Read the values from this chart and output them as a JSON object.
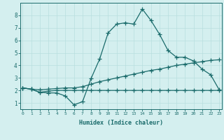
{
  "line1_x": [
    0,
    1,
    2,
    3,
    4,
    5,
    6,
    7,
    8,
    9,
    10,
    11,
    12,
    13,
    14,
    15,
    16,
    17,
    18,
    19,
    20,
    21,
    22,
    23
  ],
  "line1_y": [
    2.2,
    2.1,
    1.85,
    1.8,
    1.8,
    1.55,
    0.85,
    1.1,
    2.95,
    4.5,
    6.6,
    7.3,
    7.4,
    7.3,
    8.5,
    7.6,
    6.5,
    5.2,
    4.65,
    4.65,
    4.35,
    3.7,
    3.25,
    2.05
  ],
  "line2_x": [
    0,
    1,
    2,
    3,
    4,
    5,
    6,
    7,
    8,
    9,
    10,
    11,
    12,
    13,
    14,
    15,
    16,
    17,
    18,
    19,
    20,
    21,
    22,
    23
  ],
  "line2_y": [
    2.2,
    2.1,
    2.05,
    2.1,
    2.15,
    2.2,
    2.2,
    2.3,
    2.5,
    2.7,
    2.85,
    3.0,
    3.15,
    3.3,
    3.45,
    3.6,
    3.7,
    3.85,
    4.0,
    4.1,
    4.2,
    4.3,
    4.4,
    4.45
  ],
  "line3_x": [
    0,
    1,
    2,
    3,
    4,
    5,
    6,
    7,
    8,
    9,
    10,
    11,
    12,
    13,
    14,
    15,
    16,
    17,
    18,
    19,
    20,
    21,
    22,
    23
  ],
  "line3_y": [
    2.2,
    2.1,
    1.85,
    1.95,
    2.0,
    2.0,
    2.0,
    2.0,
    2.0,
    2.0,
    2.0,
    2.0,
    2.0,
    2.0,
    2.0,
    2.0,
    2.0,
    2.0,
    2.0,
    2.0,
    2.0,
    2.0,
    2.0,
    2.0
  ],
  "xlabel": "Humidex (Indice chaleur)",
  "xlim": [
    -0.3,
    23.3
  ],
  "ylim": [
    0.5,
    9.0
  ],
  "yticks": [
    1,
    2,
    3,
    4,
    5,
    6,
    7,
    8
  ],
  "xticks": [
    0,
    1,
    2,
    3,
    4,
    5,
    6,
    7,
    8,
    9,
    10,
    11,
    12,
    13,
    14,
    15,
    16,
    17,
    18,
    19,
    20,
    21,
    22,
    23
  ],
  "line_color": "#1a6b6b",
  "bg_color": "#d4efef",
  "grid_color": "#b8dede",
  "marker": "+",
  "markersize": 4,
  "linewidth": 0.9
}
